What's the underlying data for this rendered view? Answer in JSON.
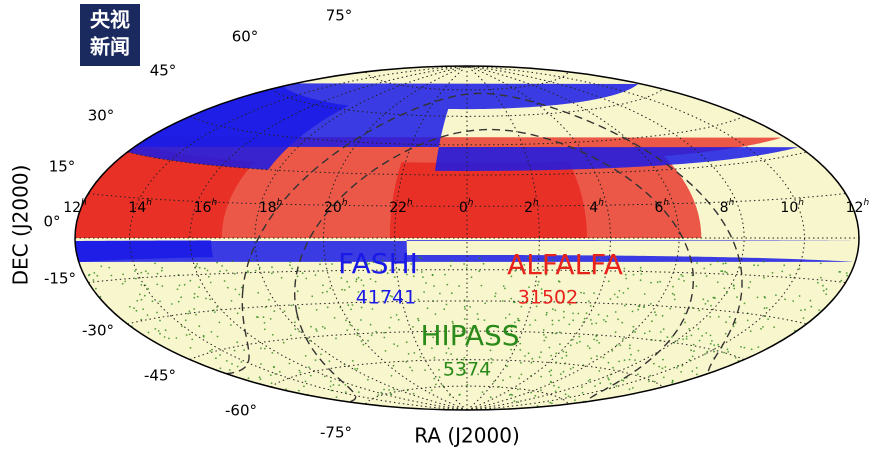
{
  "logo": {
    "line1": "央视",
    "line2": "新闻"
  },
  "map": {
    "ra_labels": [
      [
        "12",
        "h"
      ],
      [
        "14",
        "h"
      ],
      [
        "16",
        "h"
      ],
      [
        "18",
        "h"
      ],
      [
        "20",
        "h"
      ],
      [
        "22",
        "h"
      ],
      [
        "0",
        "h"
      ],
      [
        "2",
        "h"
      ],
      [
        "4",
        "h"
      ],
      [
        "6",
        "h"
      ],
      [
        "8",
        "h"
      ],
      [
        "10",
        "h"
      ],
      [
        "12",
        "h"
      ]
    ],
    "dec_labels": [
      "75°",
      "60°",
      "45°",
      "30°",
      "15°",
      "0°",
      "-15°",
      "-30°",
      "-45°",
      "-60°",
      "-75°"
    ],
    "xlabel": "RA (J2000)",
    "ylabel": "DEC (J2000)",
    "surveys": [
      {
        "name": "FASHI",
        "count": "41741",
        "color": "#1a1ae6"
      },
      {
        "name": "ALFALFA",
        "count": "31502",
        "color": "#e8231c"
      },
      {
        "name": "HIPASS",
        "count": "5374",
        "color": "#2a8a1a"
      }
    ]
  }
}
